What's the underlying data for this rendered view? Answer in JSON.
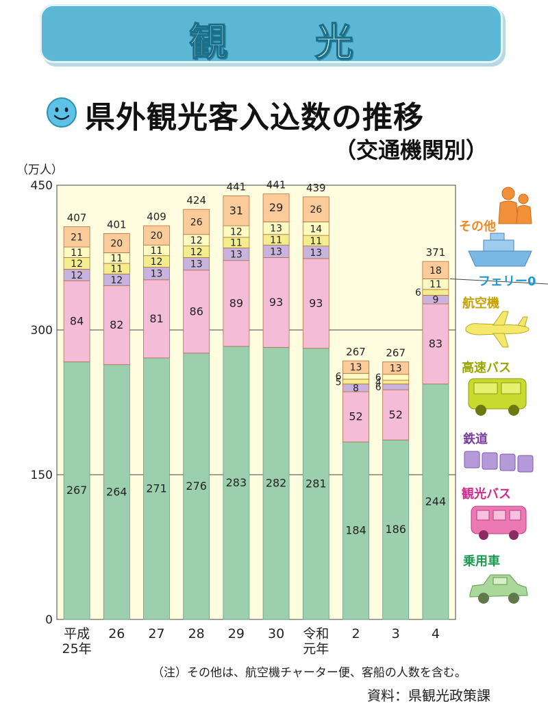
{
  "header": {
    "banner": "観 光"
  },
  "title": {
    "main": "県外観光客入込数の推移",
    "sub": "（交通機関別）"
  },
  "chart_data": {
    "type": "bar",
    "stacked": true,
    "yunit_label": "（万人）",
    "ylim": [
      0,
      450
    ],
    "yticks": [
      "0",
      "150",
      "300",
      "450"
    ],
    "categories": [
      "平成25年",
      "26",
      "27",
      "28",
      "29",
      "30",
      "令和元年",
      "2",
      "3",
      "4"
    ],
    "category_lines": [
      [
        "平成",
        "25年"
      ],
      [
        "26"
      ],
      [
        "27"
      ],
      [
        "28"
      ],
      [
        "29"
      ],
      [
        "30"
      ],
      [
        "令和",
        "元年"
      ],
      [
        "2"
      ],
      [
        "3"
      ],
      [
        "4"
      ]
    ],
    "totals": [
      "407",
      "401",
      "409",
      "424",
      "441",
      "441",
      "439",
      "267",
      "267",
      "371"
    ],
    "series": [
      {
        "name": "乗用車",
        "color": "#9ccfae",
        "label_color": "#1e9a50",
        "values": [
          267,
          264,
          271,
          276,
          283,
          282,
          281,
          184,
          186,
          244
        ]
      },
      {
        "name": "観光バス",
        "color": "#f5bcd8",
        "label_color": "#d62a8a",
        "values": [
          84,
          82,
          81,
          86,
          89,
          93,
          93,
          52,
          52,
          83
        ]
      },
      {
        "name": "鉄道",
        "color": "#c7b3de",
        "label_color": "#7a3fa0",
        "values": [
          12,
          12,
          13,
          13,
          13,
          13,
          13,
          8,
          6,
          9
        ]
      },
      {
        "name": "高速バス",
        "color": "#f3ed8d",
        "label_color": "#96a800",
        "values": [
          12,
          11,
          12,
          12,
          11,
          11,
          11,
          5,
          4,
          6
        ]
      },
      {
        "name": "航空機",
        "color": "#fdfbc2",
        "label_color": "#c6a100",
        "values": [
          11,
          11,
          11,
          12,
          12,
          13,
          14,
          6,
          6,
          11
        ]
      },
      {
        "name": "フェリー",
        "color": "#a9dff1",
        "label_color": "#1e9ad0",
        "values": [
          0,
          0,
          0,
          0,
          0,
          0,
          0,
          0,
          0,
          0
        ]
      },
      {
        "name": "その他",
        "color": "#fbcc9a",
        "label_color": "#ee8a25",
        "values": [
          21,
          20,
          20,
          26,
          31,
          29,
          26,
          13,
          13,
          18
        ]
      }
    ],
    "ferry_annotation": "フェリー0"
  },
  "footer": {
    "note": "（注）その他は、航空機チャーター便、客船の人数を含む。",
    "source": "資料：県観光政策課"
  },
  "colors": {
    "banner": "#5bb7d3",
    "gridline": "#444444",
    "bar_border": "#d88a3a",
    "icon_other": "#f2903a",
    "icon_ferry": "#7ab8e6",
    "icon_air": "#f5e86a",
    "icon_hbus": "#c8da2e",
    "icon_rail": "#b49ad8",
    "icon_tbus": "#ec79b4",
    "icon_car": "#a9d89a"
  }
}
